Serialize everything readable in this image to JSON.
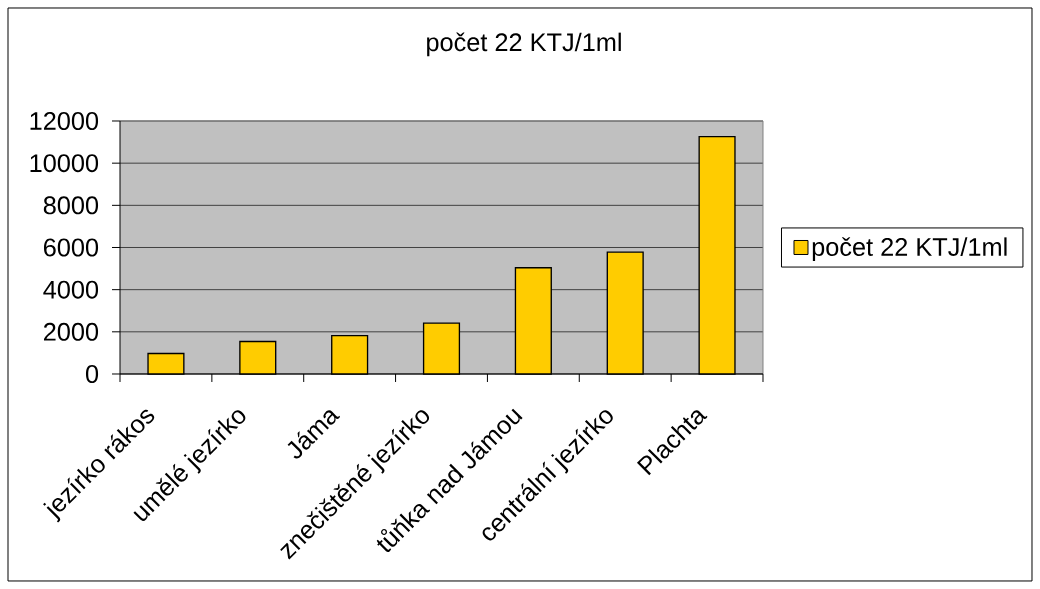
{
  "chart_data": {
    "type": "bar",
    "title": "počet 22 KTJ/1ml",
    "categories": [
      "jezírko rákos",
      "umělé jezírko",
      "Jáma",
      "znečištěné jezírko",
      "tůňka nad Jámou",
      "centrální jezírko",
      "Plachta"
    ],
    "series": [
      {
        "name": "počet 22 KTJ/1ml",
        "color": "#ffcc00",
        "values": [
          970,
          1540,
          1820,
          2410,
          5040,
          5780,
          11260
        ]
      }
    ],
    "ylim": [
      0,
      12000
    ],
    "yticks": [
      0,
      2000,
      4000,
      6000,
      8000,
      10000,
      12000
    ],
    "grid": "y",
    "legend": "right"
  }
}
